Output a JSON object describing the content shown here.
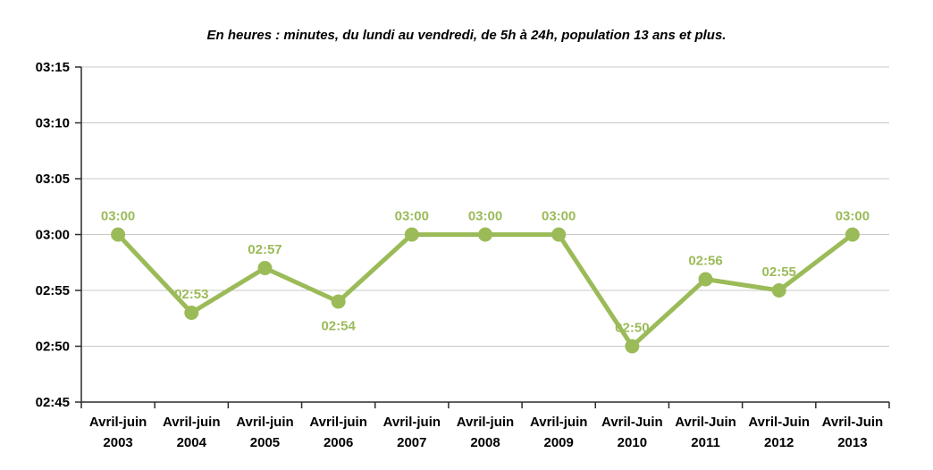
{
  "title": "En heures : minutes, du lundi au vendredi, de 5h à 24h, population 13 ans et plus.",
  "chart_data": {
    "type": "line",
    "title": "En heures : minutes, du lundi au vendredi, de 5h à 24h, population 13 ans et plus.",
    "categories": [
      {
        "line1": "Avril-juin",
        "line2": "2003"
      },
      {
        "line1": "Avril-juin",
        "line2": "2004"
      },
      {
        "line1": "Avril-juin",
        "line2": "2005"
      },
      {
        "line1": "Avril-juin",
        "line2": "2006"
      },
      {
        "line1": "Avril-juin",
        "line2": "2007"
      },
      {
        "line1": "Avril-juin",
        "line2": "2008"
      },
      {
        "line1": "Avril-juin",
        "line2": "2009"
      },
      {
        "line1": "Avril-Juin",
        "line2": "2010"
      },
      {
        "line1": "Avril-Juin",
        "line2": "2011"
      },
      {
        "line1": "Avril-Juin",
        "line2": "2012"
      },
      {
        "line1": "Avril-Juin",
        "line2": "2013"
      }
    ],
    "values_minutes": [
      180,
      173,
      177,
      174,
      180,
      180,
      180,
      170,
      176,
      175,
      180
    ],
    "point_labels": [
      "03:00",
      "02:53",
      "02:57",
      "02:54",
      "03:00",
      "03:00",
      "03:00",
      "02:50",
      "02:56",
      "02:55",
      "03:00"
    ],
    "label_positions": [
      "above",
      "above",
      "above",
      "below",
      "above",
      "above",
      "above",
      "above",
      "above",
      "above",
      "above"
    ],
    "y_axis": {
      "ticks": [
        "03:15",
        "03:10",
        "03:05",
        "03:00",
        "02:55",
        "02:50",
        "02:45"
      ],
      "max_minutes": 195,
      "min_minutes": 165,
      "tick_step_minutes": 5
    },
    "xlabel": "",
    "ylabel": "",
    "grid": true,
    "legend": "none",
    "colors": {
      "line": "#9bbb59",
      "marker": "#9bbb59",
      "data_label": "#9bbb59",
      "gridline": "#c8c8c8",
      "axis": "#2b2b2b",
      "tick_label": "#000000",
      "title": "#000000"
    }
  }
}
